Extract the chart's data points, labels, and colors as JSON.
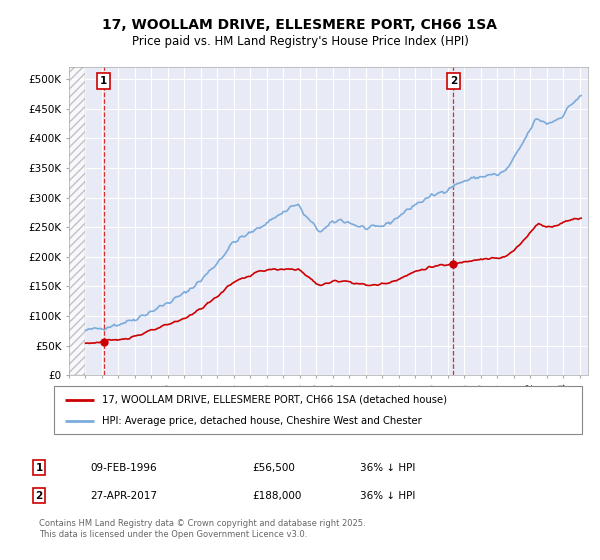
{
  "title1": "17, WOOLLAM DRIVE, ELLESMERE PORT, CH66 1SA",
  "title2": "Price paid vs. HM Land Registry's House Price Index (HPI)",
  "ylim": [
    0,
    520000
  ],
  "yticks": [
    0,
    50000,
    100000,
    150000,
    200000,
    250000,
    300000,
    350000,
    400000,
    450000,
    500000
  ],
  "ytick_labels": [
    "£0",
    "£50K",
    "£100K",
    "£150K",
    "£200K",
    "£250K",
    "£300K",
    "£350K",
    "£400K",
    "£450K",
    "£500K"
  ],
  "background_color": "#ffffff",
  "plot_bg_color": "#e8eaf6",
  "grid_color": "#ffffff",
  "hpi_color": "#7aabdb",
  "price_color": "#cc0000",
  "legend_label_red": "17, WOOLLAM DRIVE, ELLESMERE PORT, CH66 1SA (detached house)",
  "legend_label_blue": "HPI: Average price, detached house, Cheshire West and Chester",
  "note1_label": "1",
  "note1_date": "09-FEB-1996",
  "note1_price": "£56,500",
  "note1_hpi": "36% ↓ HPI",
  "note2_label": "2",
  "note2_date": "27-APR-2017",
  "note2_price": "£188,000",
  "note2_hpi": "36% ↓ HPI",
  "copyright": "Contains HM Land Registry data © Crown copyright and database right 2025.\nThis data is licensed under the Open Government Licence v3.0.",
  "marker1_x": 1996.1,
  "marker1_y": 56500,
  "marker2_x": 2017.33,
  "marker2_y": 188000,
  "xlim_left": 1994.0,
  "xlim_right": 2025.5,
  "hatch_end": 1995.0
}
